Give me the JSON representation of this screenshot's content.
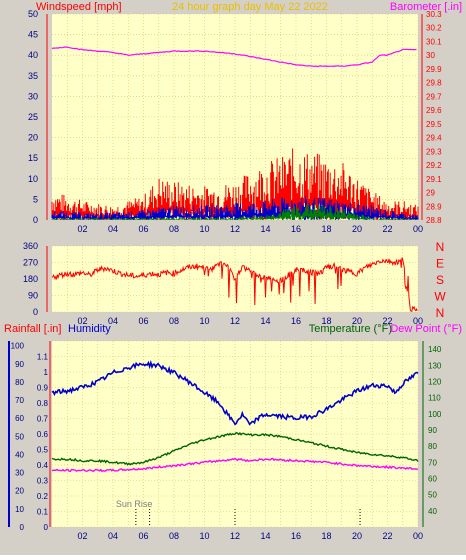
{
  "header": {
    "left_title": "Windspeed [mph]",
    "center_title": "24 hour graph day   May 22 2022",
    "right_title": "Barometer [.in]"
  },
  "colors": {
    "background": "#d4d0c8",
    "plot_bg": "#ffffc8",
    "grid": "#e0c060",
    "red": "#ff0000",
    "blue": "#0000cc",
    "green": "#008000",
    "magenta": "#ff00ff",
    "dark_green": "#006400",
    "navy": "#000080",
    "gold": "#e8c000"
  },
  "time_axis": {
    "ticks": [
      "02",
      "04",
      "06",
      "08",
      "10",
      "12",
      "14",
      "16",
      "18",
      "20",
      "22",
      "00"
    ]
  },
  "chart_data": [
    {
      "id": "wind",
      "type": "line",
      "xlim": [
        0,
        24
      ],
      "ylabel": "Windspeed [mph]",
      "ylim": [
        0,
        50
      ],
      "yticks": [
        0,
        5,
        10,
        15,
        20,
        25,
        30,
        35,
        40,
        45,
        50
      ],
      "y2label": "Barometer [.in]",
      "y2lim": [
        28.8,
        30.3
      ],
      "y2ticks": [
        "28.8",
        "28.9",
        "29",
        "29.1",
        "29.2",
        "29.3",
        "29.4",
        "29.5",
        "29.6",
        "29.7",
        "29.8",
        "29.9",
        "30",
        "30.1",
        "30.2",
        "30.3"
      ],
      "series": [
        {
          "color": "red",
          "axis": "y",
          "style": "gust-band",
          "x": [
            0,
            2,
            4,
            6,
            7,
            8,
            10,
            12,
            13,
            14,
            15,
            16,
            17,
            18,
            19,
            20,
            21,
            22,
            23,
            24
          ],
          "values": [
            6,
            4,
            3,
            5,
            9,
            8,
            7,
            8,
            10,
            12,
            13,
            15,
            14,
            13,
            12,
            9,
            6,
            4,
            4,
            3
          ]
        },
        {
          "color": "blue",
          "axis": "y",
          "style": "avg-band",
          "x": [
            0,
            2,
            4,
            6,
            8,
            10,
            12,
            14,
            16,
            18,
            20,
            21,
            22,
            24
          ],
          "values": [
            2,
            1.5,
            1.5,
            2,
            3,
            3,
            3.5,
            4,
            5,
            4.5,
            3.5,
            3,
            2,
            1
          ]
        },
        {
          "color": "green",
          "axis": "y",
          "style": "avg-band",
          "x": [
            0,
            12,
            14,
            15,
            16,
            17,
            18,
            19,
            20,
            21,
            24
          ],
          "values": [
            0.3,
            0.5,
            1,
            2,
            3,
            3.5,
            3,
            2.5,
            1.5,
            0.5,
            0.2
          ]
        },
        {
          "color": "magenta",
          "axis": "y2",
          "style": "line",
          "x": [
            0,
            1,
            2,
            3,
            4,
            5,
            6,
            8,
            10,
            12,
            13,
            14,
            15,
            16,
            17,
            18,
            19,
            20,
            21,
            21.5,
            22,
            22.5,
            23,
            24
          ],
          "values": [
            30.05,
            30.06,
            30.04,
            30.03,
            30.02,
            30.0,
            30.01,
            30.03,
            30.03,
            30.01,
            29.99,
            29.97,
            29.95,
            29.93,
            29.92,
            29.92,
            29.92,
            29.93,
            29.95,
            30.0,
            30.0,
            30.02,
            30.04,
            30.04
          ]
        }
      ]
    },
    {
      "id": "direction",
      "type": "line",
      "xlim": [
        0,
        24
      ],
      "ylim": [
        0,
        360
      ],
      "yticks": [
        0,
        90,
        180,
        270,
        360
      ],
      "y2ticks": [
        "N",
        "W",
        "S",
        "E",
        "N"
      ],
      "series": [
        {
          "color": "red",
          "axis": "y",
          "x": [
            0,
            0.5,
            1,
            1.5,
            2,
            2.5,
            3,
            3.5,
            4,
            4.5,
            5,
            5.5,
            6,
            6.5,
            7,
            7.5,
            8,
            8.5,
            9,
            9.5,
            10,
            10.5,
            11,
            11.5,
            12,
            12.5,
            13,
            13.5,
            14,
            14.5,
            15,
            15.5,
            16,
            16.5,
            17,
            17.5,
            18,
            18.5,
            19,
            19.5,
            20,
            20.5,
            21,
            21.5,
            22,
            22.5,
            23,
            23.5,
            24
          ],
          "values": [
            190,
            200,
            210,
            205,
            215,
            200,
            230,
            240,
            225,
            210,
            200,
            195,
            200,
            210,
            205,
            215,
            210,
            230,
            245,
            250,
            240,
            235,
            260,
            255,
            180,
            250,
            220,
            200,
            190,
            180,
            170,
            200,
            230,
            225,
            215,
            210,
            240,
            250,
            230,
            220,
            210,
            240,
            260,
            280,
            280,
            270,
            280,
            20,
            5
          ]
        }
      ]
    },
    {
      "id": "rain-temp",
      "type": "line",
      "xlim": [
        0,
        24
      ],
      "ylabel": "Rainfall [.in]",
      "ylim": [
        0,
        1.2
      ],
      "yticks": [
        "0",
        "0.1",
        "0.2",
        "0.3",
        "0.4",
        "0.5",
        "0.6",
        "0.7",
        "0.8",
        "0.9",
        "1",
        "1.1"
      ],
      "ylabel_hum": "Humidity",
      "hum_lim": [
        0,
        100
      ],
      "hum_ticks": [
        "0",
        "10",
        "20",
        "30",
        "40",
        "50",
        "60",
        "70",
        "80",
        "90",
        "100"
      ],
      "y2label": "Temperature (°F)",
      "y2label_b": "Dew Point (°F)",
      "y2lim": [
        30,
        145
      ],
      "y2ticks": [
        "40",
        "50",
        "60",
        "70",
        "80",
        "90",
        "100",
        "110",
        "120",
        "130",
        "140"
      ],
      "series": [
        {
          "color": "blue",
          "axis": "hum",
          "x": [
            0,
            1,
            2,
            3,
            4,
            5,
            6,
            7,
            8,
            9,
            10,
            11,
            11.5,
            12,
            12.5,
            13,
            13.5,
            14,
            15,
            16,
            17,
            18,
            19,
            20,
            21,
            22,
            22.5,
            23,
            24
          ],
          "values": [
            74,
            75,
            77,
            80,
            85,
            88,
            90,
            89,
            85,
            80,
            74,
            68,
            62,
            57,
            62,
            56,
            60,
            62,
            61,
            60,
            61,
            65,
            70,
            75,
            78,
            78,
            74,
            79,
            85
          ]
        },
        {
          "color": "dark_green",
          "axis": "y2",
          "x": [
            0,
            1,
            2,
            3,
            4,
            5,
            6,
            7,
            8,
            9,
            10,
            11,
            12,
            13,
            14,
            15,
            16,
            17,
            18,
            19,
            20,
            21,
            22,
            23,
            24
          ],
          "values": [
            72,
            72,
            71,
            71,
            70,
            69,
            70,
            73,
            77,
            81,
            84,
            86,
            88,
            87,
            87,
            86,
            84,
            82,
            80,
            78,
            76,
            75,
            74,
            73,
            71
          ]
        },
        {
          "color": "magenta",
          "axis": "y2",
          "x": [
            0,
            2,
            4,
            6,
            8,
            10,
            12,
            13,
            14,
            16,
            18,
            20,
            22,
            24
          ],
          "values": [
            65,
            65,
            65,
            66,
            68,
            70,
            72,
            71,
            72,
            71,
            70,
            68,
            67,
            66
          ]
        }
      ],
      "markers": [
        {
          "x": 5.5,
          "label": "Sun Rise"
        },
        {
          "x": 6.4,
          "label": ""
        },
        {
          "x": 12.0,
          "label": ""
        },
        {
          "x": 20.2,
          "label": ""
        }
      ]
    }
  ]
}
